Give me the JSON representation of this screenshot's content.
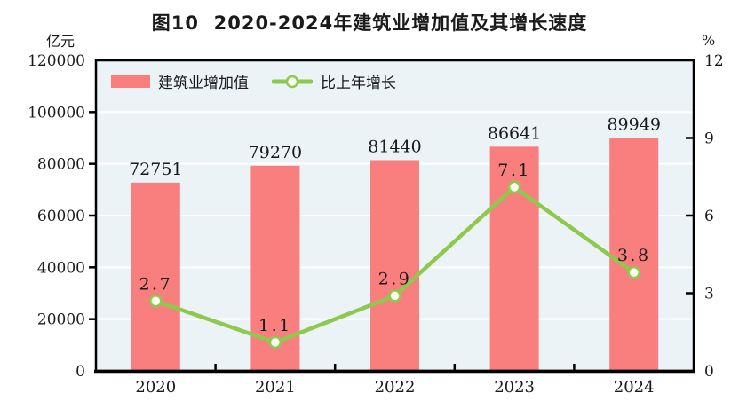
{
  "chart_data": {
    "type": "bar",
    "combo": "bar+line",
    "title": "图10  2020-2024年建筑业增加值及其增长速度",
    "categories": [
      "2020",
      "2021",
      "2022",
      "2023",
      "2024"
    ],
    "series": [
      {
        "name": "建筑业增加值",
        "kind": "bar",
        "axis": "left",
        "values": [
          72751,
          79270,
          81440,
          86641,
          89949
        ],
        "labels": [
          "72751",
          "79270",
          "81440",
          "86641",
          "89949"
        ],
        "color": "#F97F7F"
      },
      {
        "name": "比上年增长",
        "kind": "line",
        "axis": "right",
        "values": [
          2.7,
          1.1,
          2.9,
          7.1,
          3.8
        ],
        "labels": [
          "2.7",
          "1.1",
          "2.9",
          "7.1",
          "3.8"
        ],
        "color": "#8CC94C",
        "marker_fill": "#FDFFF2"
      }
    ],
    "left_axis": {
      "label": "亿元",
      "min": 0,
      "max": 120000,
      "ticks": [
        0,
        20000,
        40000,
        60000,
        80000,
        100000,
        120000
      ],
      "tick_labels": [
        "0",
        "20000",
        "40000",
        "60000",
        "80000",
        "100000",
        "120000"
      ]
    },
    "right_axis": {
      "label": "%",
      "min": 0,
      "max": 12,
      "ticks": [
        0,
        3,
        6,
        9,
        12
      ],
      "tick_labels": [
        "0",
        "3",
        "6",
        "9",
        "12"
      ]
    },
    "legend_position": "top-inside",
    "grid": {
      "show": true,
      "color": "#FFFFFF"
    },
    "plot_bg": "#ECF3F7",
    "border_color": "#000000",
    "text_color": "#1A1A1A"
  }
}
